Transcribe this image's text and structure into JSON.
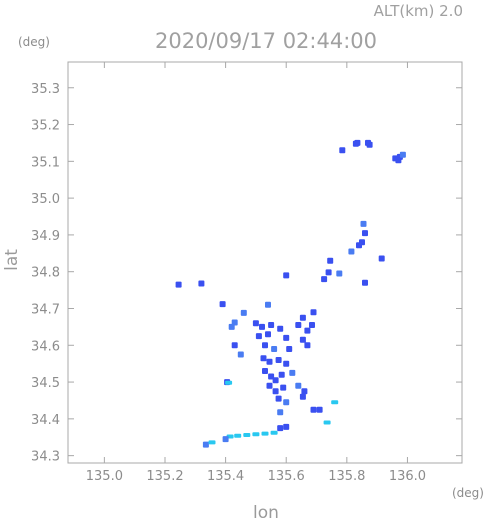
{
  "header": {
    "altitude_label": "ALT(km) 2.0",
    "timestamp": "2020/09/17 02:44:00"
  },
  "chart_data": {
    "type": "scatter",
    "title": "2020/09/17 02:44:00",
    "xlabel": "lon",
    "ylabel": "lat",
    "x_unit": "(deg)",
    "y_unit": "(deg)",
    "xlim": [
      134.88,
      136.18
    ],
    "ylim": [
      34.28,
      35.37
    ],
    "xticks": [
      135.0,
      135.2,
      135.4,
      135.6,
      135.8,
      136.0
    ],
    "xtick_labels": [
      "135.0",
      "135.2",
      "135.4",
      "135.6",
      "135.8",
      "136.0"
    ],
    "yticks": [
      34.3,
      34.4,
      34.5,
      34.6,
      34.7,
      34.8,
      34.9,
      35.0,
      35.1,
      35.2,
      35.3
    ],
    "ytick_labels": [
      "34.3",
      "34.4",
      "34.5",
      "34.6",
      "34.7",
      "34.8",
      "34.9",
      "35.0",
      "35.1",
      "35.2",
      "35.3"
    ],
    "grid": false,
    "colors": {
      "strong": "#3a50f0",
      "medium": "#4a7cf2",
      "weak": "#29c8f0",
      "axis": "#a8a8a8"
    },
    "points": [
      {
        "lon": 135.83,
        "lat": 35.148,
        "i": "strong"
      },
      {
        "lon": 135.835,
        "lat": 35.15,
        "i": "strong"
      },
      {
        "lon": 135.87,
        "lat": 35.15,
        "i": "strong"
      },
      {
        "lon": 135.875,
        "lat": 35.145,
        "i": "strong"
      },
      {
        "lon": 135.785,
        "lat": 35.13,
        "i": "strong"
      },
      {
        "lon": 135.96,
        "lat": 35.108,
        "i": "strong"
      },
      {
        "lon": 135.97,
        "lat": 35.103,
        "i": "strong"
      },
      {
        "lon": 135.975,
        "lat": 35.112,
        "i": "strong"
      },
      {
        "lon": 135.985,
        "lat": 35.118,
        "i": "medium"
      },
      {
        "lon": 135.855,
        "lat": 34.93,
        "i": "medium"
      },
      {
        "lon": 135.86,
        "lat": 34.905,
        "i": "strong"
      },
      {
        "lon": 135.85,
        "lat": 34.88,
        "i": "strong"
      },
      {
        "lon": 135.84,
        "lat": 34.872,
        "i": "strong"
      },
      {
        "lon": 135.815,
        "lat": 34.855,
        "i": "medium"
      },
      {
        "lon": 135.915,
        "lat": 34.836,
        "i": "strong"
      },
      {
        "lon": 135.745,
        "lat": 34.83,
        "i": "strong"
      },
      {
        "lon": 135.74,
        "lat": 34.798,
        "i": "strong"
      },
      {
        "lon": 135.775,
        "lat": 34.795,
        "i": "medium"
      },
      {
        "lon": 135.86,
        "lat": 34.77,
        "i": "strong"
      },
      {
        "lon": 135.6,
        "lat": 34.79,
        "i": "strong"
      },
      {
        "lon": 135.725,
        "lat": 34.78,
        "i": "strong"
      },
      {
        "lon": 135.245,
        "lat": 34.765,
        "i": "strong"
      },
      {
        "lon": 135.32,
        "lat": 34.768,
        "i": "strong"
      },
      {
        "lon": 135.39,
        "lat": 34.712,
        "i": "strong"
      },
      {
        "lon": 135.46,
        "lat": 34.688,
        "i": "medium"
      },
      {
        "lon": 135.54,
        "lat": 34.71,
        "i": "medium"
      },
      {
        "lon": 135.69,
        "lat": 34.69,
        "i": "strong"
      },
      {
        "lon": 135.655,
        "lat": 34.675,
        "i": "strong"
      },
      {
        "lon": 135.43,
        "lat": 34.662,
        "i": "medium"
      },
      {
        "lon": 135.42,
        "lat": 34.65,
        "i": "medium"
      },
      {
        "lon": 135.5,
        "lat": 34.66,
        "i": "strong"
      },
      {
        "lon": 135.52,
        "lat": 34.65,
        "i": "strong"
      },
      {
        "lon": 135.55,
        "lat": 34.655,
        "i": "strong"
      },
      {
        "lon": 135.58,
        "lat": 34.645,
        "i": "strong"
      },
      {
        "lon": 135.64,
        "lat": 34.655,
        "i": "strong"
      },
      {
        "lon": 135.67,
        "lat": 34.64,
        "i": "strong"
      },
      {
        "lon": 135.685,
        "lat": 34.655,
        "i": "strong"
      },
      {
        "lon": 135.51,
        "lat": 34.625,
        "i": "strong"
      },
      {
        "lon": 135.54,
        "lat": 34.63,
        "i": "strong"
      },
      {
        "lon": 135.6,
        "lat": 34.62,
        "i": "strong"
      },
      {
        "lon": 135.655,
        "lat": 34.615,
        "i": "strong"
      },
      {
        "lon": 135.43,
        "lat": 34.6,
        "i": "strong"
      },
      {
        "lon": 135.53,
        "lat": 34.6,
        "i": "strong"
      },
      {
        "lon": 135.56,
        "lat": 34.59,
        "i": "medium"
      },
      {
        "lon": 135.61,
        "lat": 34.59,
        "i": "strong"
      },
      {
        "lon": 135.67,
        "lat": 34.6,
        "i": "strong"
      },
      {
        "lon": 135.45,
        "lat": 34.575,
        "i": "medium"
      },
      {
        "lon": 135.525,
        "lat": 34.565,
        "i": "strong"
      },
      {
        "lon": 135.545,
        "lat": 34.555,
        "i": "strong"
      },
      {
        "lon": 135.575,
        "lat": 34.56,
        "i": "strong"
      },
      {
        "lon": 135.6,
        "lat": 34.55,
        "i": "strong"
      },
      {
        "lon": 135.53,
        "lat": 34.53,
        "i": "strong"
      },
      {
        "lon": 135.55,
        "lat": 34.515,
        "i": "strong"
      },
      {
        "lon": 135.565,
        "lat": 34.505,
        "i": "strong"
      },
      {
        "lon": 135.585,
        "lat": 34.52,
        "i": "strong"
      },
      {
        "lon": 135.62,
        "lat": 34.525,
        "i": "medium"
      },
      {
        "lon": 135.545,
        "lat": 34.49,
        "i": "strong"
      },
      {
        "lon": 135.565,
        "lat": 34.475,
        "i": "strong"
      },
      {
        "lon": 135.59,
        "lat": 34.485,
        "i": "strong"
      },
      {
        "lon": 135.64,
        "lat": 34.49,
        "i": "medium"
      },
      {
        "lon": 135.66,
        "lat": 34.475,
        "i": "strong"
      },
      {
        "lon": 135.655,
        "lat": 34.46,
        "i": "strong"
      },
      {
        "lon": 135.575,
        "lat": 34.455,
        "i": "strong"
      },
      {
        "lon": 135.6,
        "lat": 34.445,
        "i": "medium"
      },
      {
        "lon": 135.405,
        "lat": 34.5,
        "i": "strong"
      },
      {
        "lon": 135.41,
        "lat": 34.498,
        "i": "weak"
      },
      {
        "lon": 135.58,
        "lat": 34.418,
        "i": "medium"
      },
      {
        "lon": 135.69,
        "lat": 34.425,
        "i": "strong"
      },
      {
        "lon": 135.71,
        "lat": 34.425,
        "i": "strong"
      },
      {
        "lon": 135.58,
        "lat": 34.375,
        "i": "strong"
      },
      {
        "lon": 135.6,
        "lat": 34.378,
        "i": "strong"
      },
      {
        "lon": 135.735,
        "lat": 34.39,
        "i": "weak"
      },
      {
        "lon": 135.415,
        "lat": 34.352,
        "i": "weak"
      },
      {
        "lon": 135.44,
        "lat": 34.354,
        "i": "weak"
      },
      {
        "lon": 135.47,
        "lat": 34.356,
        "i": "weak"
      },
      {
        "lon": 135.5,
        "lat": 34.358,
        "i": "weak"
      },
      {
        "lon": 135.53,
        "lat": 34.36,
        "i": "weak"
      },
      {
        "lon": 135.56,
        "lat": 34.362,
        "i": "weak"
      },
      {
        "lon": 135.4,
        "lat": 34.345,
        "i": "medium"
      },
      {
        "lon": 135.335,
        "lat": 34.33,
        "i": "medium"
      },
      {
        "lon": 135.355,
        "lat": 34.336,
        "i": "weak"
      },
      {
        "lon": 135.76,
        "lat": 34.445,
        "i": "weak"
      }
    ]
  }
}
